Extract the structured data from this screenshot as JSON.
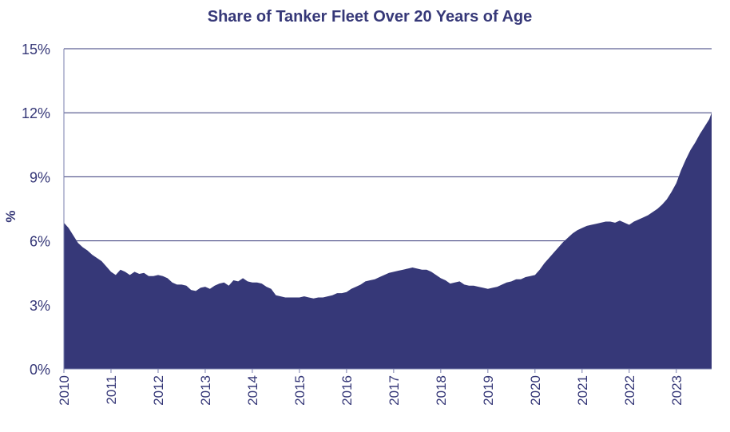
{
  "chart_data": {
    "type": "area",
    "title": "Share of Tanker Fleet Over 20 Years of Age",
    "ylabel": "%",
    "xlabel": "",
    "ylim": [
      0,
      15
    ],
    "xlim": [
      2010.0,
      2023.75
    ],
    "yticks": [
      0,
      3,
      6,
      9,
      12,
      15
    ],
    "ytick_labels": [
      "0%",
      "3%",
      "6%",
      "9%",
      "12%",
      "15%"
    ],
    "xticks": [
      2010,
      2011,
      2012,
      2013,
      2014,
      2015,
      2016,
      2017,
      2018,
      2019,
      2020,
      2021,
      2022,
      2023
    ],
    "xtick_labels": [
      "2010",
      "2011",
      "2012",
      "2013",
      "2014",
      "2015",
      "2016",
      "2017",
      "2018",
      "2019",
      "2020",
      "2021",
      "2022",
      "2023"
    ],
    "grid": "horizontal",
    "fill_color": "#363878",
    "text_color": "#363878",
    "series": [
      {
        "x": [
          2010.0,
          2010.1,
          2010.2,
          2010.3,
          2010.4,
          2010.5,
          2010.6,
          2010.7,
          2010.8,
          2010.9,
          2011.0,
          2011.1,
          2011.2,
          2011.3,
          2011.4,
          2011.5,
          2011.6,
          2011.7,
          2011.8,
          2011.9,
          2012.0,
          2012.1,
          2012.2,
          2012.3,
          2012.4,
          2012.5,
          2012.6,
          2012.7,
          2012.8,
          2012.9,
          2013.0,
          2013.1,
          2013.2,
          2013.3,
          2013.4,
          2013.5,
          2013.6,
          2013.7,
          2013.8,
          2013.9,
          2014.0,
          2014.1,
          2014.2,
          2014.3,
          2014.4,
          2014.5,
          2014.6,
          2014.7,
          2014.8,
          2014.9,
          2015.0,
          2015.1,
          2015.2,
          2015.3,
          2015.4,
          2015.5,
          2015.6,
          2015.7,
          2015.8,
          2015.9,
          2016.0,
          2016.1,
          2016.2,
          2016.3,
          2016.4,
          2016.5,
          2016.6,
          2016.7,
          2016.8,
          2016.9,
          2017.0,
          2017.1,
          2017.2,
          2017.3,
          2017.4,
          2017.5,
          2017.6,
          2017.7,
          2017.8,
          2017.9,
          2018.0,
          2018.1,
          2018.2,
          2018.3,
          2018.4,
          2018.5,
          2018.6,
          2018.7,
          2018.8,
          2018.9,
          2019.0,
          2019.1,
          2019.2,
          2019.3,
          2019.4,
          2019.5,
          2019.6,
          2019.7,
          2019.8,
          2019.9,
          2020.0,
          2020.1,
          2020.2,
          2020.3,
          2020.4,
          2020.5,
          2020.6,
          2020.7,
          2020.8,
          2020.9,
          2021.0,
          2021.1,
          2021.2,
          2021.3,
          2021.4,
          2021.5,
          2021.6,
          2021.7,
          2021.8,
          2021.9,
          2022.0,
          2022.1,
          2022.2,
          2022.3,
          2022.4,
          2022.5,
          2022.6,
          2022.7,
          2022.8,
          2022.9,
          2023.0,
          2023.1,
          2023.2,
          2023.3,
          2023.4,
          2023.5,
          2023.6,
          2023.7,
          2023.75
        ],
        "y": [
          6.85,
          6.6,
          6.25,
          5.9,
          5.7,
          5.55,
          5.35,
          5.2,
          5.05,
          4.8,
          4.55,
          4.4,
          4.65,
          4.55,
          4.4,
          4.55,
          4.45,
          4.5,
          4.35,
          4.35,
          4.4,
          4.35,
          4.25,
          4.05,
          3.95,
          3.95,
          3.9,
          3.7,
          3.65,
          3.8,
          3.85,
          3.75,
          3.9,
          4.0,
          4.05,
          3.9,
          4.15,
          4.1,
          4.25,
          4.1,
          4.05,
          4.05,
          4.0,
          3.85,
          3.75,
          3.45,
          3.4,
          3.35,
          3.35,
          3.35,
          3.35,
          3.4,
          3.35,
          3.3,
          3.35,
          3.35,
          3.4,
          3.45,
          3.55,
          3.55,
          3.6,
          3.75,
          3.85,
          3.95,
          4.1,
          4.15,
          4.2,
          4.3,
          4.4,
          4.5,
          4.55,
          4.6,
          4.65,
          4.7,
          4.75,
          4.7,
          4.65,
          4.65,
          4.55,
          4.4,
          4.25,
          4.15,
          4.0,
          4.05,
          4.1,
          3.95,
          3.9,
          3.9,
          3.85,
          3.8,
          3.75,
          3.8,
          3.85,
          3.95,
          4.05,
          4.1,
          4.2,
          4.2,
          4.3,
          4.35,
          4.4,
          4.65,
          4.95,
          5.2,
          5.45,
          5.7,
          5.95,
          6.15,
          6.35,
          6.5,
          6.6,
          6.7,
          6.75,
          6.8,
          6.85,
          6.9,
          6.9,
          6.85,
          6.95,
          6.85,
          6.75,
          6.9,
          7.0,
          7.1,
          7.2,
          7.35,
          7.5,
          7.7,
          7.95,
          8.3,
          8.7,
          9.3,
          9.8,
          10.25,
          10.6,
          11.0,
          11.35,
          11.7,
          12.0
        ]
      }
    ]
  }
}
